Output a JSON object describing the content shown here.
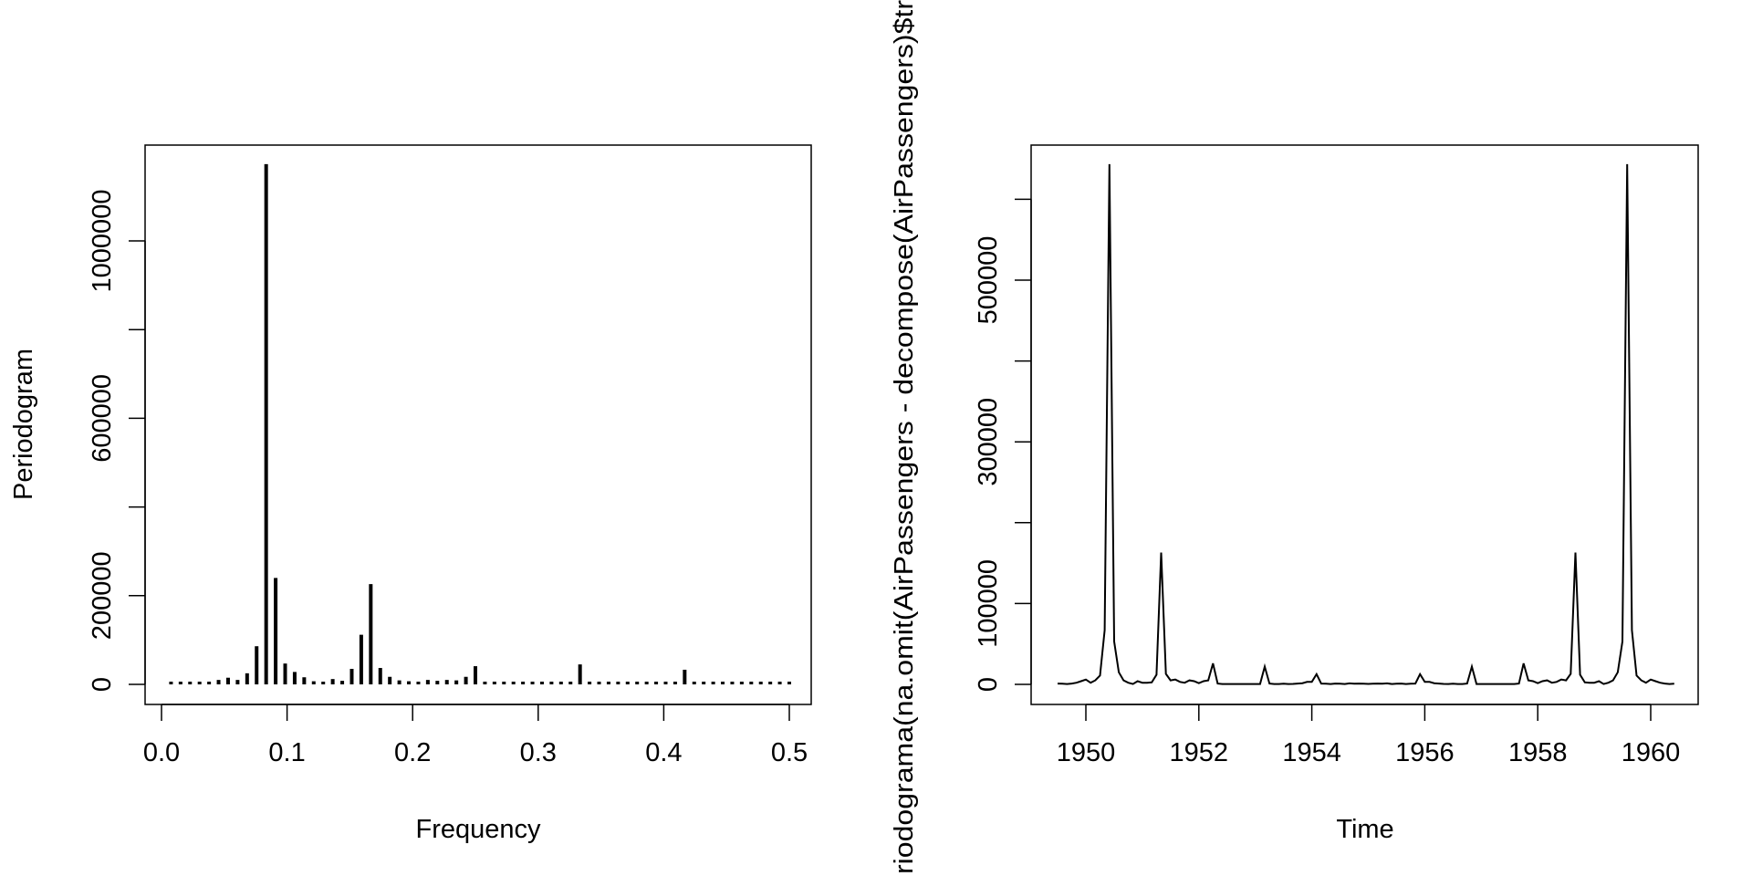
{
  "chart_data": [
    {
      "type": "bar",
      "title": "",
      "xlabel": "Frequency",
      "ylabel": "Periodogram",
      "xlim": [
        0,
        0.5
      ],
      "ylim": [
        0,
        1200000
      ],
      "x_ticks": [
        0.0,
        0.1,
        0.2,
        0.3,
        0.4,
        0.5
      ],
      "x_tick_labels": [
        "0.0",
        "0.1",
        "0.2",
        "0.3",
        "0.4",
        "0.5"
      ],
      "y_ticks": [
        0,
        200000,
        400000,
        600000,
        800000,
        1000000
      ],
      "y_tick_labels": [
        "0",
        "200000",
        "",
        "600000",
        "",
        "1000000"
      ],
      "grid": false,
      "frequency_denominator": 132,
      "values": [
        5000,
        3000,
        3000,
        3000,
        5000,
        10000,
        15000,
        10000,
        25000,
        86000,
        1173000,
        240000,
        47000,
        28000,
        16000,
        7000,
        5000,
        12000,
        8000,
        35000,
        112000,
        226000,
        37000,
        17000,
        9000,
        7000,
        6000,
        10000,
        8000,
        10000,
        9000,
        17000,
        41000,
        3000,
        2000,
        2000,
        2000,
        2000,
        2000,
        2000,
        2000,
        2000,
        5000,
        45000,
        3000,
        2000,
        2000,
        2000,
        2000,
        2000,
        2000,
        2000,
        2000,
        5000,
        33000,
        3000,
        2000,
        2000,
        2000,
        2000,
        2000,
        3000,
        2000,
        2000,
        2000,
        2000
      ]
    },
    {
      "type": "line",
      "title": "",
      "xlabel": "Time",
      "ylabel": "riodograma(na.omit(AirPassengers - decompose(AirPassengers)$tr",
      "x_start": 1949.5,
      "x_step": 0.083333,
      "xlim": [
        1949.5,
        1960.42
      ],
      "ylim": [
        0,
        643500
      ],
      "x_ticks": [
        1950,
        1952,
        1954,
        1956,
        1958,
        1960
      ],
      "x_tick_labels": [
        "1950",
        "1952",
        "1954",
        "1956",
        "1958",
        "1960"
      ],
      "y_ticks": [
        0,
        100000,
        200000,
        300000,
        400000,
        500000,
        600000
      ],
      "y_tick_labels": [
        "0",
        "100000",
        "",
        "300000",
        "",
        "500000",
        ""
      ],
      "grid": false,
      "half_values": [
        1000,
        800,
        500,
        1000,
        2000,
        4000,
        6000,
        2000,
        5000,
        11000,
        67000,
        643500,
        53000,
        15000,
        5000,
        2000,
        500,
        4000,
        2000,
        2000,
        2500,
        12000,
        163000,
        13000,
        5000,
        6000,
        3000,
        2000,
        5000,
        4000,
        1500,
        4000,
        5000,
        26000,
        1000,
        500,
        500,
        500,
        500,
        500,
        500,
        500,
        500,
        500,
        22000,
        1000,
        500,
        500,
        800,
        500,
        600,
        1000,
        1500,
        3000,
        3000,
        12600,
        1000,
        800,
        500,
        1000,
        800,
        500,
        1200,
        800,
        1000,
        800,
        600
      ]
    }
  ]
}
